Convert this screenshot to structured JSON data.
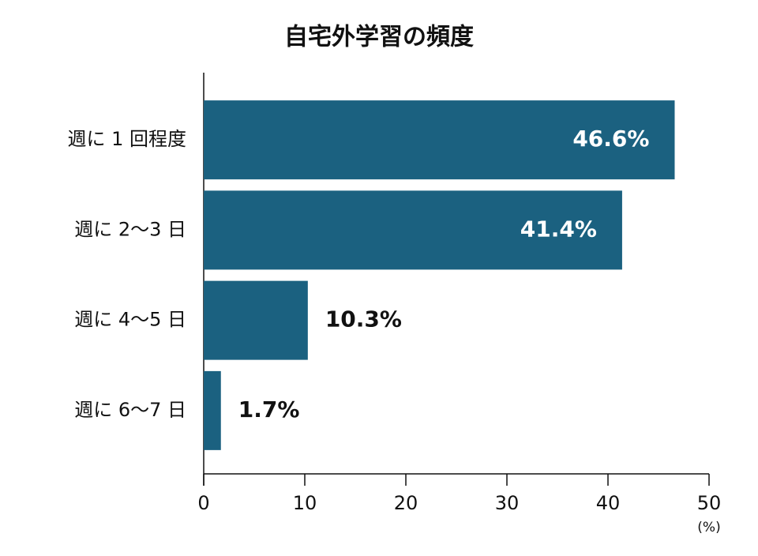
{
  "chart_data": {
    "type": "bar",
    "orientation": "horizontal",
    "title": "自宅外学習の頻度",
    "categories": [
      "週に 1 回程度",
      "週に 2〜3 日",
      "週に 4〜5 日",
      "週に 6〜7 日"
    ],
    "values": [
      46.6,
      41.4,
      10.3,
      1.7
    ],
    "value_labels": [
      "46.6%",
      "41.4%",
      "10.3%",
      "1.7%"
    ],
    "color": "#1b6180",
    "xlim": [
      0,
      50
    ],
    "xticks": [
      0,
      10,
      20,
      30,
      40,
      50
    ],
    "xlabel": "(%)",
    "grid": false
  }
}
